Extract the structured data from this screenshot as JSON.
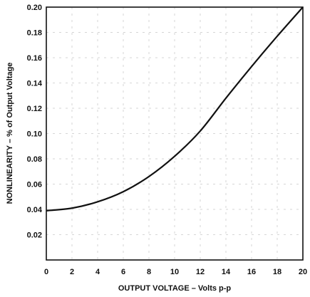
{
  "chart_data": {
    "type": "line",
    "title": "",
    "xlabel": "OUTPUT VOLTAGE – Volts p-p",
    "ylabel": "NONLINEARITY – % of Output Voltage",
    "xlim": [
      0,
      20
    ],
    "ylim": [
      0,
      0.2
    ],
    "x_ticks": [
      "0",
      "2",
      "4",
      "6",
      "8",
      "10",
      "12",
      "14",
      "16",
      "18",
      "20"
    ],
    "y_ticks": [
      "0.02",
      "0.04",
      "0.06",
      "0.08",
      "0.10",
      "0.12",
      "0.14",
      "0.16",
      "0.18",
      "0.20"
    ],
    "grid": true,
    "series": [
      {
        "x": [
          0,
          2,
          4,
          6,
          8,
          10,
          12,
          14,
          16,
          18,
          20
        ],
        "y": [
          0.039,
          0.041,
          0.046,
          0.054,
          0.066,
          0.082,
          0.102,
          0.128,
          0.153,
          0.177,
          0.2
        ]
      }
    ],
    "colors": {
      "line": "#111111",
      "grid": "#d6d6d6",
      "background": "#ffffff"
    }
  }
}
